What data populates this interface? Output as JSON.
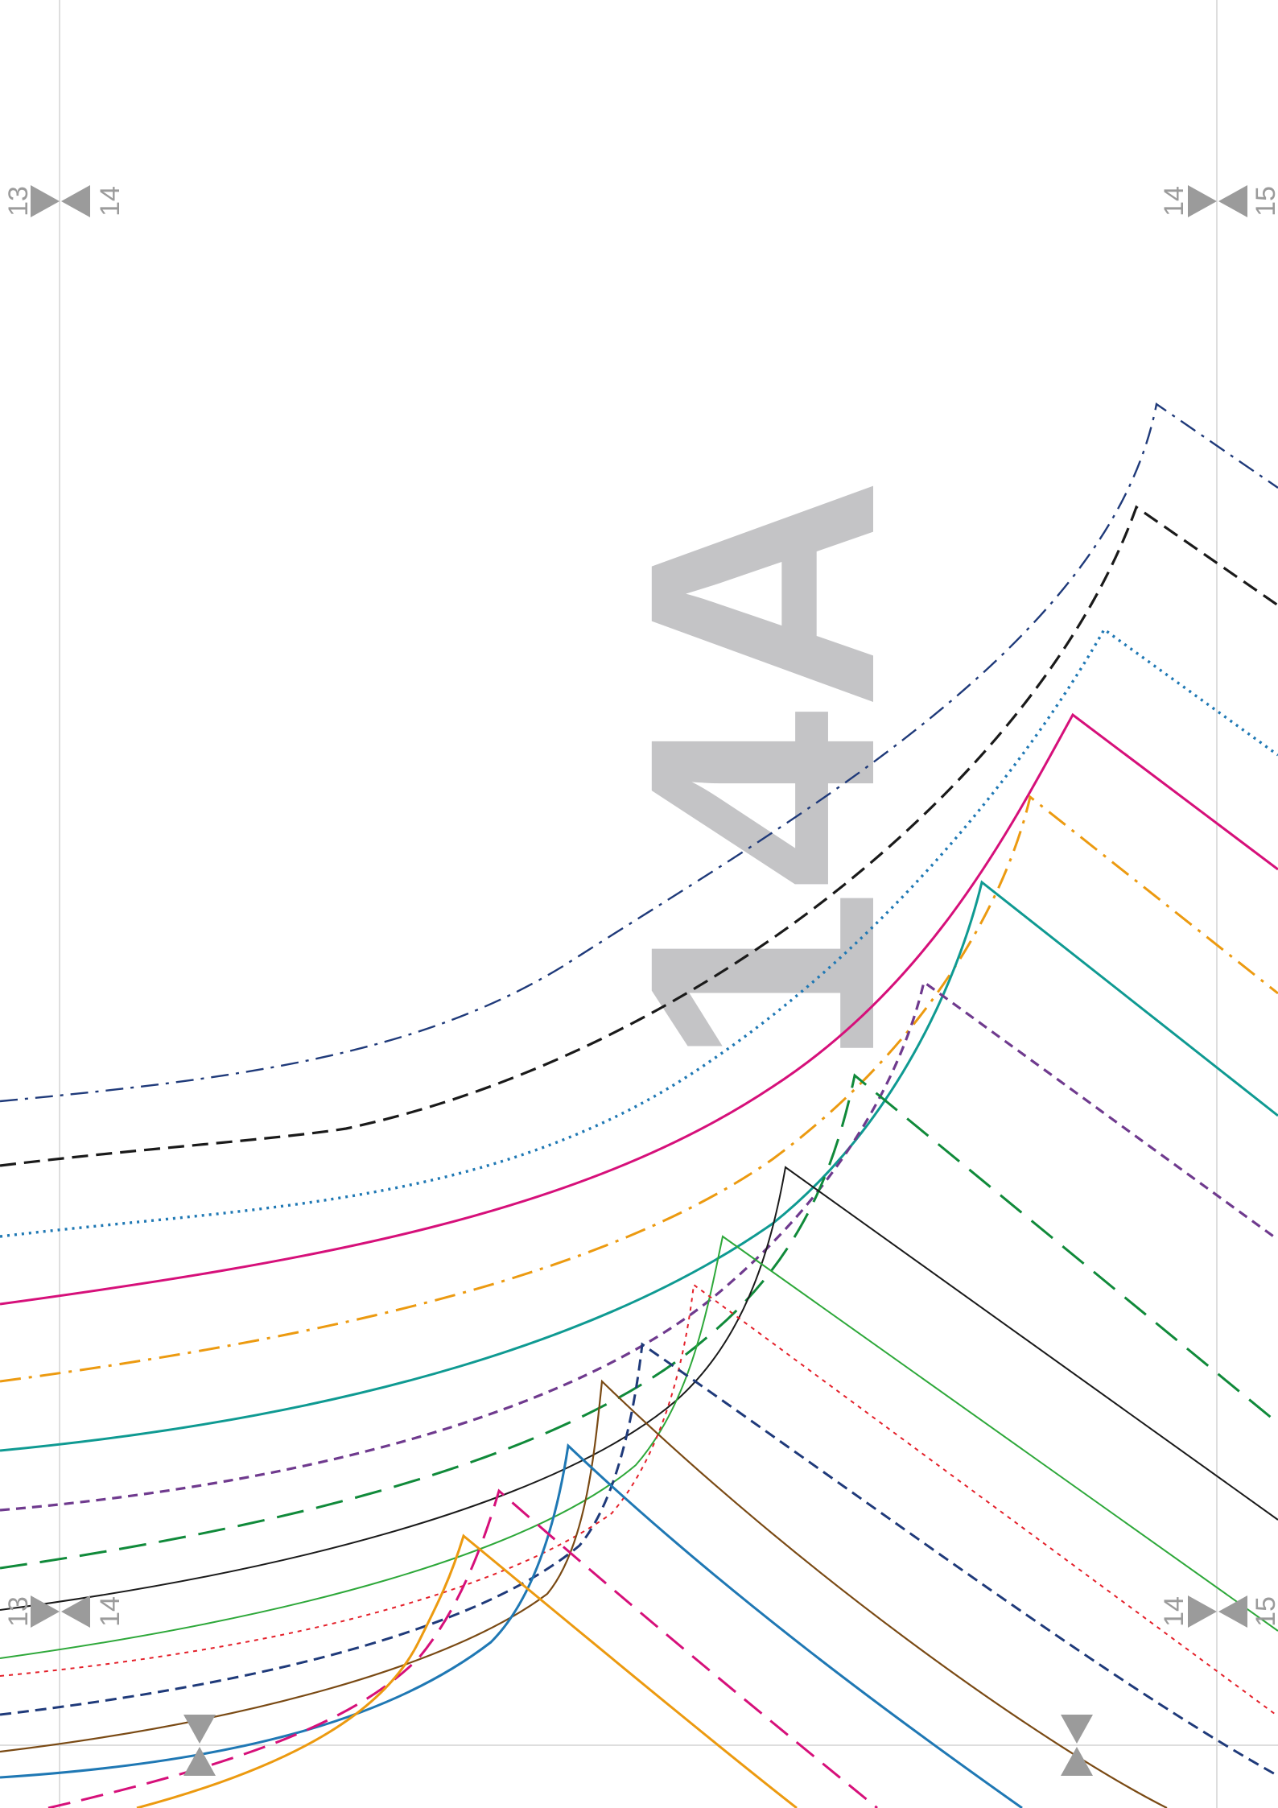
{
  "page_label": "14A",
  "page_markers": {
    "top_left": {
      "before": "13",
      "after": "14"
    },
    "top_right": {
      "before": "14",
      "after": "15"
    },
    "bottom_left": {
      "before": "13",
      "after": "14"
    },
    "bottom_right": {
      "before": "14",
      "after": "15"
    }
  },
  "colors": {
    "grid": "#d4d4d4",
    "marker": "#9b9b9b",
    "label": "#c4c4c6",
    "navy": "#1f3a7a",
    "black": "#1a1a1a",
    "blue": "#1f78b4",
    "magenta": "#d6107a",
    "orange": "#ec9a10",
    "teal": "#0f9a92",
    "purple": "#6f3a8e",
    "green": "#108a3a",
    "light_green": "#2ea83a",
    "red": "#e4202a",
    "brown": "#7a4a14"
  }
}
